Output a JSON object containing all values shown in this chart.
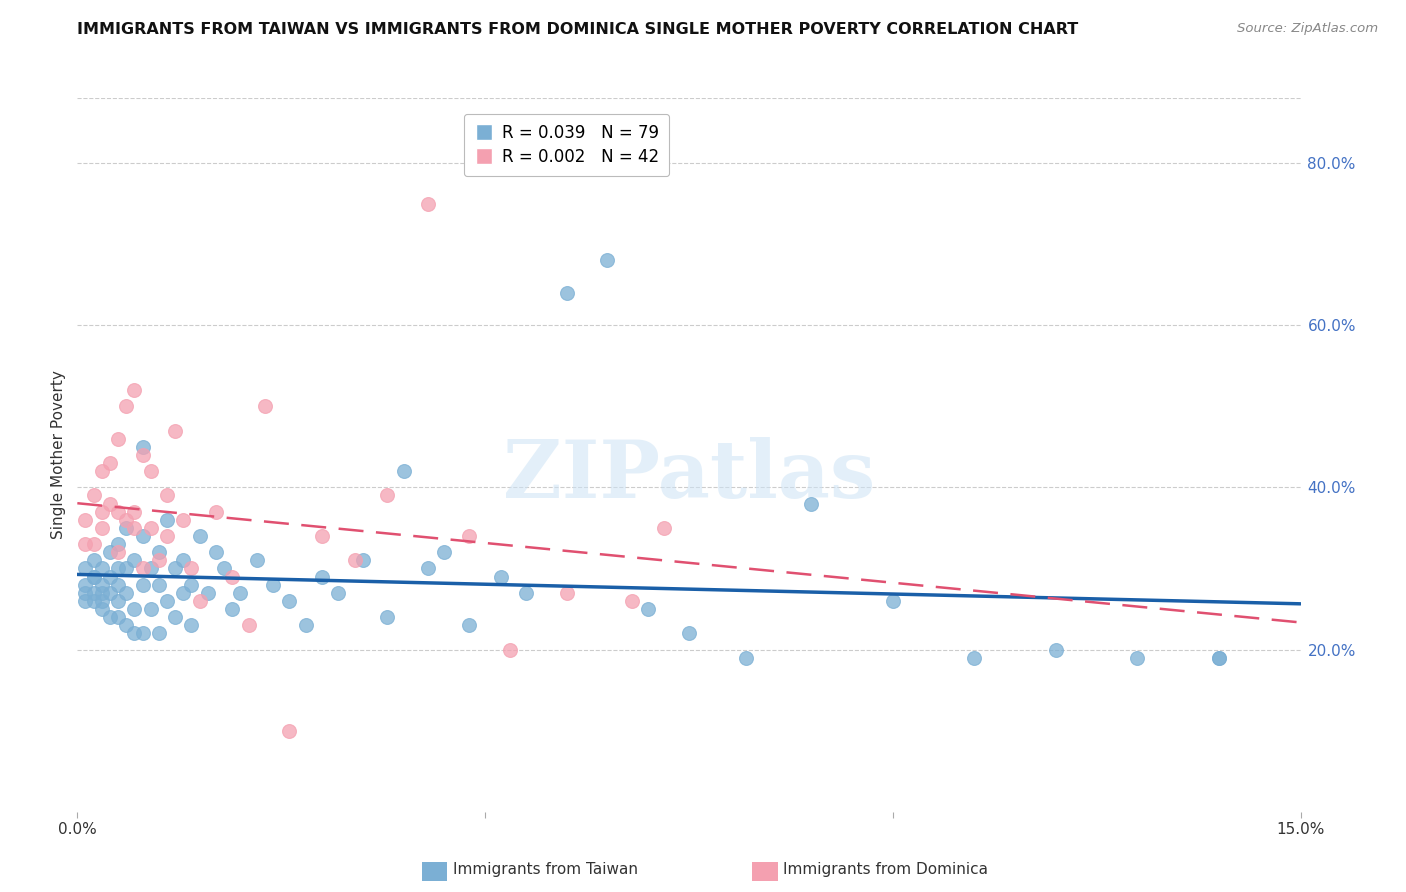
{
  "title": "IMMIGRANTS FROM TAIWAN VS IMMIGRANTS FROM DOMINICA SINGLE MOTHER POVERTY CORRELATION CHART",
  "source": "Source: ZipAtlas.com",
  "ylabel": "Single Mother Poverty",
  "right_yticks": [
    "20.0%",
    "40.0%",
    "60.0%",
    "80.0%"
  ],
  "right_ytick_vals": [
    0.2,
    0.4,
    0.6,
    0.8
  ],
  "xlim": [
    0.0,
    0.15
  ],
  "ylim": [
    0.0,
    0.88
  ],
  "taiwan_R": 0.039,
  "taiwan_N": 79,
  "dominica_R": 0.002,
  "dominica_N": 42,
  "taiwan_color": "#7bafd4",
  "dominica_color": "#f4a0b0",
  "taiwan_line_color": "#1a5fa8",
  "dominica_line_color": "#e05070",
  "taiwan_points_x": [
    0.001,
    0.001,
    0.001,
    0.001,
    0.002,
    0.002,
    0.002,
    0.002,
    0.002,
    0.003,
    0.003,
    0.003,
    0.003,
    0.003,
    0.004,
    0.004,
    0.004,
    0.004,
    0.005,
    0.005,
    0.005,
    0.005,
    0.005,
    0.006,
    0.006,
    0.006,
    0.006,
    0.007,
    0.007,
    0.007,
    0.008,
    0.008,
    0.008,
    0.008,
    0.009,
    0.009,
    0.01,
    0.01,
    0.01,
    0.011,
    0.011,
    0.012,
    0.012,
    0.013,
    0.013,
    0.014,
    0.014,
    0.015,
    0.016,
    0.017,
    0.018,
    0.019,
    0.02,
    0.022,
    0.024,
    0.026,
    0.028,
    0.03,
    0.032,
    0.035,
    0.038,
    0.04,
    0.043,
    0.045,
    0.048,
    0.052,
    0.055,
    0.06,
    0.065,
    0.07,
    0.075,
    0.082,
    0.09,
    0.1,
    0.11,
    0.12,
    0.13,
    0.14,
    0.14
  ],
  "taiwan_points_y": [
    0.28,
    0.27,
    0.3,
    0.26,
    0.29,
    0.27,
    0.31,
    0.26,
    0.29,
    0.28,
    0.25,
    0.27,
    0.3,
    0.26,
    0.32,
    0.27,
    0.24,
    0.29,
    0.33,
    0.26,
    0.24,
    0.28,
    0.3,
    0.35,
    0.27,
    0.23,
    0.3,
    0.31,
    0.25,
    0.22,
    0.34,
    0.28,
    0.22,
    0.45,
    0.3,
    0.25,
    0.32,
    0.22,
    0.28,
    0.36,
    0.26,
    0.3,
    0.24,
    0.31,
    0.27,
    0.28,
    0.23,
    0.34,
    0.27,
    0.32,
    0.3,
    0.25,
    0.27,
    0.31,
    0.28,
    0.26,
    0.23,
    0.29,
    0.27,
    0.31,
    0.24,
    0.42,
    0.3,
    0.32,
    0.23,
    0.29,
    0.27,
    0.64,
    0.68,
    0.25,
    0.22,
    0.19,
    0.38,
    0.26,
    0.19,
    0.2,
    0.19,
    0.19,
    0.19
  ],
  "dominica_points_x": [
    0.001,
    0.001,
    0.002,
    0.002,
    0.003,
    0.003,
    0.003,
    0.004,
    0.004,
    0.005,
    0.005,
    0.005,
    0.006,
    0.006,
    0.007,
    0.007,
    0.007,
    0.008,
    0.008,
    0.009,
    0.009,
    0.01,
    0.011,
    0.011,
    0.012,
    0.013,
    0.014,
    0.015,
    0.017,
    0.019,
    0.021,
    0.023,
    0.026,
    0.03,
    0.034,
    0.038,
    0.043,
    0.048,
    0.053,
    0.06,
    0.068,
    0.072
  ],
  "dominica_points_y": [
    0.36,
    0.33,
    0.39,
    0.33,
    0.37,
    0.42,
    0.35,
    0.43,
    0.38,
    0.46,
    0.37,
    0.32,
    0.5,
    0.36,
    0.52,
    0.37,
    0.35,
    0.44,
    0.3,
    0.42,
    0.35,
    0.31,
    0.39,
    0.34,
    0.47,
    0.36,
    0.3,
    0.26,
    0.37,
    0.29,
    0.23,
    0.5,
    0.1,
    0.34,
    0.31,
    0.39,
    0.75,
    0.34,
    0.2,
    0.27,
    0.26,
    0.35
  ]
}
